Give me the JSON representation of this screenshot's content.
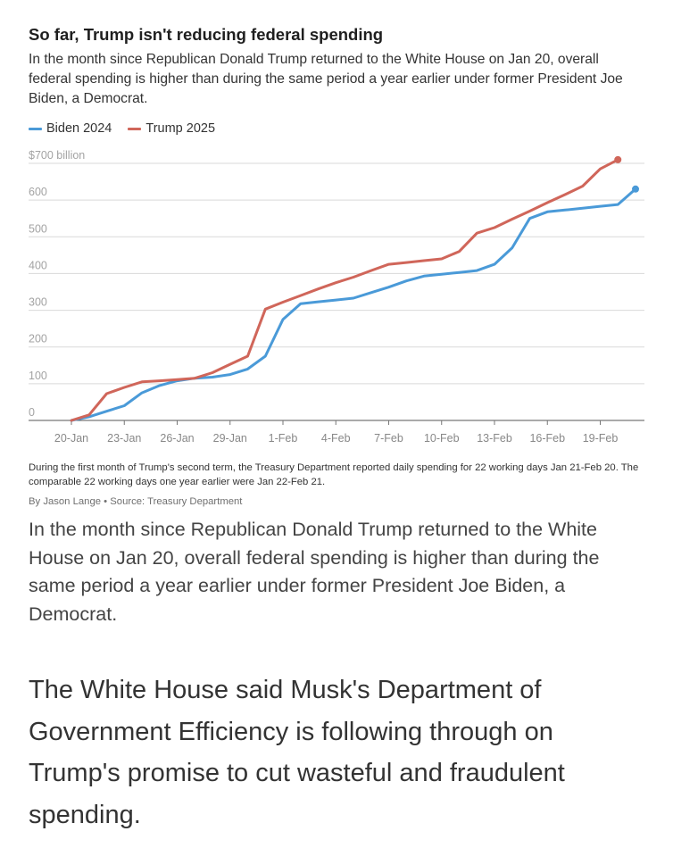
{
  "header": {
    "title": "So far, Trump isn't reducing federal spending",
    "subtitle": "In the month since Republican Donald Trump returned to the White House on Jan 20, overall federal spending is higher than during the same period a year earlier under former President Joe Biden, a Democrat."
  },
  "footer": {
    "note": "During the first month of Trump's second term, the Treasury Department reported daily spending for 22 working days Jan 21-Feb 20. The comparable 22 working days one year earlier were Jan 22-Feb 21.",
    "byline": "By Jason Lange • Source: Treasury Department"
  },
  "article": {
    "paragraph1": "In the month since Republican Donald Trump returned to the White House on Jan 20, overall federal spending is higher than during the same period a year earlier under former President Joe Biden, a Democrat.",
    "paragraph2": "The White House said Musk's Department of Government Efficiency is following through on Trump's promise to cut wasteful and fraudulent spending."
  },
  "chart_data": {
    "type": "line",
    "title": "So far, Trump isn't reducing federal spending",
    "ylabel": "",
    "xlabel": "",
    "ylim": [
      0,
      700
    ],
    "y_ticks": [
      {
        "value": 0,
        "label": "0"
      },
      {
        "value": 100,
        "label": "100"
      },
      {
        "value": 200,
        "label": "200"
      },
      {
        "value": 300,
        "label": "300"
      },
      {
        "value": 400,
        "label": "400"
      },
      {
        "value": 500,
        "label": "500"
      },
      {
        "value": 600,
        "label": "600"
      },
      {
        "value": 700,
        "label": "$700 billion"
      }
    ],
    "x_ticks": [
      "20-Jan",
      "23-Jan",
      "26-Jan",
      "29-Jan",
      "1-Feb",
      "4-Feb",
      "7-Feb",
      "10-Feb",
      "13-Feb",
      "16-Feb",
      "19-Feb"
    ],
    "grid": true,
    "legend_position": "top-left",
    "series": [
      {
        "name": "Biden 2024",
        "color": "#4a9ad8",
        "points": [
          {
            "x": "20-Jan",
            "y": 0
          },
          {
            "x": "21-Jan",
            "y": 10
          },
          {
            "x": "22-Jan",
            "y": 25
          },
          {
            "x": "23-Jan",
            "y": 40
          },
          {
            "x": "24-Jan",
            "y": 75
          },
          {
            "x": "25-Jan",
            "y": 95
          },
          {
            "x": "26-Jan",
            "y": 108
          },
          {
            "x": "27-Jan",
            "y": 115
          },
          {
            "x": "28-Jan",
            "y": 118
          },
          {
            "x": "29-Jan",
            "y": 125
          },
          {
            "x": "30-Jan",
            "y": 140
          },
          {
            "x": "31-Jan",
            "y": 175
          },
          {
            "x": "1-Feb",
            "y": 275
          },
          {
            "x": "2-Feb",
            "y": 318
          },
          {
            "x": "3-Feb",
            "y": 323
          },
          {
            "x": "4-Feb",
            "y": 328
          },
          {
            "x": "5-Feb",
            "y": 333
          },
          {
            "x": "6-Feb",
            "y": 348
          },
          {
            "x": "7-Feb",
            "y": 363
          },
          {
            "x": "8-Feb",
            "y": 380
          },
          {
            "x": "9-Feb",
            "y": 393
          },
          {
            "x": "10-Feb",
            "y": 398
          },
          {
            "x": "11-Feb",
            "y": 403
          },
          {
            "x": "12-Feb",
            "y": 408
          },
          {
            "x": "13-Feb",
            "y": 425
          },
          {
            "x": "14-Feb",
            "y": 470
          },
          {
            "x": "15-Feb",
            "y": 550
          },
          {
            "x": "16-Feb",
            "y": 568
          },
          {
            "x": "17-Feb",
            "y": 573
          },
          {
            "x": "18-Feb",
            "y": 578
          },
          {
            "x": "19-Feb",
            "y": 583
          },
          {
            "x": "20-Feb",
            "y": 588
          },
          {
            "x": "21-Feb",
            "y": 630
          }
        ]
      },
      {
        "name": "Trump 2025",
        "color": "#d0665a",
        "points": [
          {
            "x": "20-Jan",
            "y": 0
          },
          {
            "x": "21-Jan",
            "y": 15
          },
          {
            "x": "22-Jan",
            "y": 73
          },
          {
            "x": "23-Jan",
            "y": 90
          },
          {
            "x": "24-Jan",
            "y": 105
          },
          {
            "x": "25-Jan",
            "y": 108
          },
          {
            "x": "26-Jan",
            "y": 111
          },
          {
            "x": "27-Jan",
            "y": 115
          },
          {
            "x": "28-Jan",
            "y": 130
          },
          {
            "x": "29-Jan",
            "y": 153
          },
          {
            "x": "30-Jan",
            "y": 175
          },
          {
            "x": "31-Jan",
            "y": 303
          },
          {
            "x": "1-Feb",
            "y": 322
          },
          {
            "x": "2-Feb",
            "y": 340
          },
          {
            "x": "3-Feb",
            "y": 358
          },
          {
            "x": "4-Feb",
            "y": 375
          },
          {
            "x": "5-Feb",
            "y": 390
          },
          {
            "x": "6-Feb",
            "y": 408
          },
          {
            "x": "7-Feb",
            "y": 425
          },
          {
            "x": "8-Feb",
            "y": 430
          },
          {
            "x": "9-Feb",
            "y": 435
          },
          {
            "x": "10-Feb",
            "y": 440
          },
          {
            "x": "11-Feb",
            "y": 460
          },
          {
            "x": "12-Feb",
            "y": 510
          },
          {
            "x": "13-Feb",
            "y": 525
          },
          {
            "x": "14-Feb",
            "y": 548
          },
          {
            "x": "15-Feb",
            "y": 570
          },
          {
            "x": "16-Feb",
            "y": 593
          },
          {
            "x": "17-Feb",
            "y": 615
          },
          {
            "x": "18-Feb",
            "y": 638
          },
          {
            "x": "19-Feb",
            "y": 685
          },
          {
            "x": "20-Feb",
            "y": 710
          }
        ]
      }
    ]
  }
}
